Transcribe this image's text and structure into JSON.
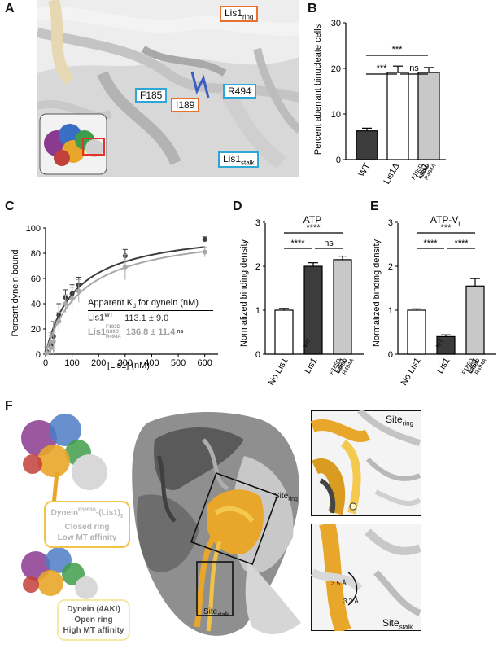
{
  "panels": {
    "A": {
      "letter": "A",
      "labels": {
        "lis1_ring_main": "Lis1",
        "lis1_ring_sub": "ring",
        "r494": "R494",
        "f185": "F185",
        "i189": "I189",
        "lis1_stalk_main": "Lis1",
        "lis1_stalk_sub": "stalk"
      }
    },
    "B": {
      "letter": "B",
      "ylabel": "Percent aberrant binucleate cells",
      "ylim": [
        0,
        30
      ],
      "yticks": [
        "0",
        "10",
        "20",
        "30"
      ],
      "categories": [
        "WT",
        "Lis1Δ",
        "Lis1",
        "F185D",
        "I189D",
        "R494A"
      ],
      "sig": [
        "***",
        "***",
        "ns"
      ]
    },
    "C": {
      "letter": "C",
      "ylabel": "Percent dynein bound",
      "xlabel": "[Lis1] (nM)",
      "yticks": [
        "0",
        "20",
        "40",
        "60",
        "80",
        "100"
      ],
      "xticks": [
        "0",
        "100",
        "200",
        "300",
        "400",
        "500",
        "600"
      ],
      "legend": {
        "title_a": "Apparent K",
        "title_sub": "d",
        "title_b": " for dynein (nM)",
        "r1_name": "Lis1",
        "r1_sup": "WT",
        "r1_val": "113.1 ± 9.0",
        "r2_name": "Lis1",
        "r2_sup": "F185D",
        "r2_sub1": "I189D",
        "r2_sub2": "R494A",
        "r2_val": "136.8 ± 11.4",
        "r2_sig": "ns"
      }
    },
    "D": {
      "letter": "D",
      "title": "ATP",
      "ylabel": "Normalized binding density",
      "yticks": [
        "0",
        "1",
        "2",
        "3"
      ],
      "categories": [
        "No Lis1",
        "Lis1",
        "WT",
        "Lis1",
        "F185D",
        "I189D",
        "R494A"
      ],
      "sig": [
        "****",
        "****",
        "ns"
      ]
    },
    "E": {
      "letter": "E",
      "title": "ATP-V",
      "title_sub": "i",
      "ylabel": "Normalized binding density",
      "yticks": [
        "0",
        "1",
        "2",
        "3"
      ],
      "categories": [
        "No Lis1",
        "Lis1",
        "WT",
        "Lis1",
        "F185D",
        "I189D",
        "R494A"
      ],
      "sig": [
        "***",
        "****",
        "****"
      ]
    },
    "F": {
      "letter": "F",
      "closed_line1": "Dynein",
      "closed_sup": "E3053G",
      "closed_mid": "-(Lis1)",
      "closed_sub": "2",
      "closed_line2": "Closed ring",
      "closed_line3": "Low MT affinity",
      "open_line1": "Dynein (4AKI)",
      "open_line2": "Open ring",
      "open_line3": "High MT affinity",
      "site_main": "Site",
      "site_ring_sub": "ring",
      "site_stalk_sub": "stalk",
      "dist_a": "3.5 Å",
      "dist_b": "3.2 Å"
    }
  },
  "chart_data": [
    {
      "panel": "B",
      "type": "bar",
      "categories": [
        "WT",
        "Lis1Δ",
        "Lis1 F185D I189D R494A"
      ],
      "values": [
        6.3,
        19.1,
        19.1
      ],
      "errors": [
        0.6,
        1.4,
        1.1
      ],
      "ylabel": "Percent aberrant binucleate cells",
      "ylim": [
        0,
        30
      ],
      "colors": [
        "#3c3c3c",
        "#ffffff",
        "#c8c8c8"
      ]
    },
    {
      "panel": "C",
      "type": "scatter",
      "xlabel": "[Lis1] (nM)",
      "ylabel": "Percent dynein bound",
      "xlim": [
        0,
        650
      ],
      "ylim": [
        0,
        100
      ],
      "series": [
        {
          "color": "#3c3c3c",
          "kd": 113.1,
          "bmax": 101,
          "x": [
            5,
            20,
            30,
            50,
            75,
            100,
            125,
            300,
            600
          ],
          "y": [
            2,
            7,
            14,
            31,
            45,
            48,
            55,
            78,
            91
          ],
          "err": [
            4,
            8,
            12,
            9,
            6,
            7,
            6,
            5,
            2
          ]
        },
        {
          "color": "#a8a8a8",
          "kd": 136.8,
          "bmax": 100,
          "x": [
            5,
            20,
            30,
            50,
            75,
            100,
            125,
            300,
            600
          ],
          "y": [
            1,
            5,
            10,
            26,
            40,
            44,
            50,
            69,
            81
          ],
          "err": [
            5,
            12,
            16,
            7,
            7,
            9,
            9,
            10,
            4
          ]
        }
      ]
    },
    {
      "panel": "D",
      "type": "bar",
      "title": "ATP",
      "categories": [
        "No Lis1",
        "Lis1 WT",
        "Lis1 F185D I189D R494A"
      ],
      "values": [
        1.0,
        2.0,
        2.15
      ],
      "errors": [
        0.04,
        0.08,
        0.08
      ],
      "ylabel": "Normalized binding density",
      "ylim": [
        0,
        3
      ],
      "colors": [
        "#ffffff",
        "#3c3c3c",
        "#c8c8c8"
      ]
    },
    {
      "panel": "E",
      "type": "bar",
      "title": "ATP-Vi",
      "categories": [
        "No Lis1",
        "Lis1 WT",
        "Lis1 F185D I189D R494A"
      ],
      "values": [
        1.0,
        0.4,
        1.55
      ],
      "errors": [
        0.03,
        0.04,
        0.17
      ],
      "ylabel": "Normalized binding density",
      "ylim": [
        0,
        3
      ],
      "colors": [
        "#ffffff",
        "#3c3c3c",
        "#c8c8c8"
      ]
    }
  ]
}
